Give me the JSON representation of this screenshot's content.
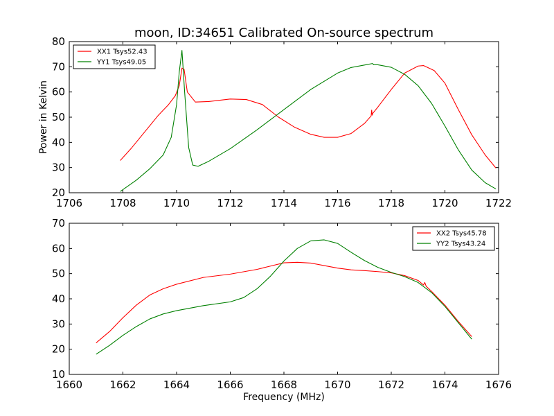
{
  "figure": {
    "title": "moon, ID:34651 Calibrated On-source spectrum",
    "ylabel": "Power in Kelvin",
    "xlabel": "Frequency (MHz)"
  },
  "chart_data": [
    {
      "type": "line",
      "xlim": [
        1706,
        1722
      ],
      "ylim": [
        20,
        80
      ],
      "xticks": [
        1706,
        1708,
        1710,
        1712,
        1714,
        1716,
        1718,
        1720,
        1722
      ],
      "yticks": [
        20,
        30,
        40,
        50,
        60,
        70,
        80
      ],
      "grid": false,
      "legend_position": "upper-left",
      "series": [
        {
          "name": "XX1 Tsys52.43",
          "color": "#ff0000",
          "x": [
            1707.9,
            1708.3,
            1708.8,
            1709.3,
            1709.7,
            1709.95,
            1710.1,
            1710.2,
            1710.28,
            1710.4,
            1710.7,
            1711.2,
            1712.0,
            1712.6,
            1713.2,
            1713.8,
            1714.4,
            1715.0,
            1715.5,
            1716.0,
            1716.5,
            1717.0,
            1717.25,
            1717.27,
            1717.29,
            1717.31,
            1717.5,
            1718.0,
            1718.5,
            1719.0,
            1719.2,
            1719.6,
            1720.0,
            1720.5,
            1721.0,
            1721.5,
            1721.9
          ],
          "y": [
            32.8,
            37.5,
            44.0,
            50.5,
            55.0,
            58.5,
            62.5,
            69.5,
            69.0,
            60.0,
            56.0,
            56.2,
            57.2,
            57.0,
            55.0,
            50.0,
            46.0,
            43.2,
            42.0,
            42.0,
            43.5,
            47.5,
            50.5,
            52.8,
            50.8,
            51.5,
            54.0,
            61.0,
            67.5,
            70.3,
            70.5,
            68.5,
            63.5,
            53.0,
            43.0,
            35.0,
            29.8
          ]
        },
        {
          "name": "YY1 Tsys49.05",
          "color": "#008000",
          "x": [
            1707.9,
            1708.5,
            1709.0,
            1709.5,
            1709.8,
            1710.0,
            1710.1,
            1710.2,
            1710.3,
            1710.45,
            1710.6,
            1710.8,
            1711.2,
            1712.0,
            1713.0,
            1714.0,
            1715.0,
            1716.0,
            1716.5,
            1717.0,
            1717.3,
            1717.35,
            1717.5,
            1718.0,
            1718.5,
            1719.0,
            1719.5,
            1720.0,
            1720.5,
            1721.0,
            1721.5,
            1721.9
          ],
          "y": [
            20.5,
            25.0,
            29.5,
            35.0,
            42.0,
            55.0,
            68.0,
            76.5,
            60.0,
            38.0,
            31.0,
            30.5,
            32.5,
            37.5,
            45.0,
            53.0,
            61.0,
            67.5,
            69.7,
            70.7,
            71.3,
            70.8,
            70.8,
            69.8,
            67.0,
            62.5,
            55.5,
            46.5,
            37.0,
            29.0,
            24.0,
            21.5
          ]
        }
      ]
    },
    {
      "type": "line",
      "xlim": [
        1660,
        1676
      ],
      "ylim": [
        10,
        70
      ],
      "xticks": [
        1660,
        1662,
        1664,
        1666,
        1668,
        1670,
        1672,
        1674,
        1676
      ],
      "yticks": [
        10,
        20,
        30,
        40,
        50,
        60,
        70
      ],
      "grid": false,
      "legend_position": "upper-right",
      "series": [
        {
          "name": "XX2 Tsys45.78",
          "color": "#ff0000",
          "x": [
            1661.0,
            1661.5,
            1662.0,
            1662.5,
            1663.0,
            1663.5,
            1664.0,
            1665.0,
            1666.0,
            1667.0,
            1667.5,
            1668.0,
            1668.5,
            1669.0,
            1669.5,
            1670.0,
            1670.5,
            1671.0,
            1671.5,
            1672.0,
            1672.5,
            1673.0,
            1673.2,
            1673.25,
            1673.3,
            1673.5,
            1674.0,
            1674.5,
            1675.0
          ],
          "y": [
            22.5,
            27.0,
            32.5,
            37.5,
            41.5,
            44.0,
            45.8,
            48.5,
            49.8,
            51.7,
            53.0,
            54.3,
            54.5,
            54.2,
            53.2,
            52.2,
            51.5,
            51.2,
            50.8,
            50.3,
            49.2,
            47.3,
            45.5,
            46.5,
            45.0,
            43.0,
            37.5,
            31.0,
            25.0
          ]
        },
        {
          "name": "YY2 Tsys43.24",
          "color": "#008000",
          "x": [
            1661.0,
            1661.5,
            1662.0,
            1662.5,
            1663.0,
            1663.5,
            1664.0,
            1665.0,
            1666.0,
            1666.5,
            1667.0,
            1667.5,
            1668.0,
            1668.5,
            1669.0,
            1669.5,
            1670.0,
            1670.5,
            1671.0,
            1671.5,
            1672.0,
            1672.5,
            1673.0,
            1673.5,
            1674.0,
            1674.5,
            1675.0
          ],
          "y": [
            18.0,
            21.5,
            25.5,
            29.0,
            32.0,
            34.0,
            35.3,
            37.3,
            38.8,
            40.5,
            44.0,
            49.0,
            55.0,
            60.0,
            63.0,
            63.4,
            62.0,
            58.5,
            55.2,
            52.5,
            50.5,
            48.8,
            46.5,
            42.5,
            37.0,
            30.5,
            24.0
          ]
        }
      ]
    }
  ]
}
